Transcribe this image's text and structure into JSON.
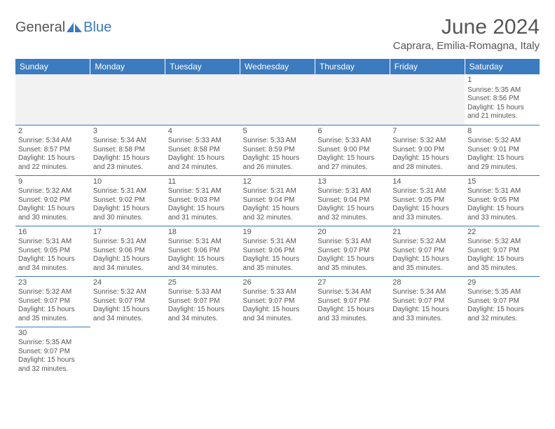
{
  "logo": {
    "part1": "General",
    "part2": "Blue"
  },
  "title": "June 2024",
  "location": "Caprara, Emilia-Romagna, Italy",
  "colors": {
    "brand": "#3b7bbf",
    "text": "#555555",
    "altRow": "#f2f2f2",
    "bg": "#ffffff"
  },
  "weekdays": [
    "Sunday",
    "Monday",
    "Tuesday",
    "Wednesday",
    "Thursday",
    "Friday",
    "Saturday"
  ],
  "weeks": [
    [
      null,
      null,
      null,
      null,
      null,
      null,
      {
        "n": "1",
        "sr": "5:35 AM",
        "ss": "8:56 PM",
        "dl": "15 hours and 21 minutes."
      }
    ],
    [
      {
        "n": "2",
        "sr": "5:34 AM",
        "ss": "8:57 PM",
        "dl": "15 hours and 22 minutes."
      },
      {
        "n": "3",
        "sr": "5:34 AM",
        "ss": "8:58 PM",
        "dl": "15 hours and 23 minutes."
      },
      {
        "n": "4",
        "sr": "5:33 AM",
        "ss": "8:58 PM",
        "dl": "15 hours and 24 minutes."
      },
      {
        "n": "5",
        "sr": "5:33 AM",
        "ss": "8:59 PM",
        "dl": "15 hours and 26 minutes."
      },
      {
        "n": "6",
        "sr": "5:33 AM",
        "ss": "9:00 PM",
        "dl": "15 hours and 27 minutes."
      },
      {
        "n": "7",
        "sr": "5:32 AM",
        "ss": "9:00 PM",
        "dl": "15 hours and 28 minutes."
      },
      {
        "n": "8",
        "sr": "5:32 AM",
        "ss": "9:01 PM",
        "dl": "15 hours and 29 minutes."
      }
    ],
    [
      {
        "n": "9",
        "sr": "5:32 AM",
        "ss": "9:02 PM",
        "dl": "15 hours and 30 minutes."
      },
      {
        "n": "10",
        "sr": "5:31 AM",
        "ss": "9:02 PM",
        "dl": "15 hours and 30 minutes."
      },
      {
        "n": "11",
        "sr": "5:31 AM",
        "ss": "9:03 PM",
        "dl": "15 hours and 31 minutes."
      },
      {
        "n": "12",
        "sr": "5:31 AM",
        "ss": "9:04 PM",
        "dl": "15 hours and 32 minutes."
      },
      {
        "n": "13",
        "sr": "5:31 AM",
        "ss": "9:04 PM",
        "dl": "15 hours and 32 minutes."
      },
      {
        "n": "14",
        "sr": "5:31 AM",
        "ss": "9:05 PM",
        "dl": "15 hours and 33 minutes."
      },
      {
        "n": "15",
        "sr": "5:31 AM",
        "ss": "9:05 PM",
        "dl": "15 hours and 33 minutes."
      }
    ],
    [
      {
        "n": "16",
        "sr": "5:31 AM",
        "ss": "9:05 PM",
        "dl": "15 hours and 34 minutes."
      },
      {
        "n": "17",
        "sr": "5:31 AM",
        "ss": "9:06 PM",
        "dl": "15 hours and 34 minutes."
      },
      {
        "n": "18",
        "sr": "5:31 AM",
        "ss": "9:06 PM",
        "dl": "15 hours and 34 minutes."
      },
      {
        "n": "19",
        "sr": "5:31 AM",
        "ss": "9:06 PM",
        "dl": "15 hours and 35 minutes."
      },
      {
        "n": "20",
        "sr": "5:31 AM",
        "ss": "9:07 PM",
        "dl": "15 hours and 35 minutes."
      },
      {
        "n": "21",
        "sr": "5:32 AM",
        "ss": "9:07 PM",
        "dl": "15 hours and 35 minutes."
      },
      {
        "n": "22",
        "sr": "5:32 AM",
        "ss": "9:07 PM",
        "dl": "15 hours and 35 minutes."
      }
    ],
    [
      {
        "n": "23",
        "sr": "5:32 AM",
        "ss": "9:07 PM",
        "dl": "15 hours and 35 minutes."
      },
      {
        "n": "24",
        "sr": "5:32 AM",
        "ss": "9:07 PM",
        "dl": "15 hours and 34 minutes."
      },
      {
        "n": "25",
        "sr": "5:33 AM",
        "ss": "9:07 PM",
        "dl": "15 hours and 34 minutes."
      },
      {
        "n": "26",
        "sr": "5:33 AM",
        "ss": "9:07 PM",
        "dl": "15 hours and 34 minutes."
      },
      {
        "n": "27",
        "sr": "5:34 AM",
        "ss": "9:07 PM",
        "dl": "15 hours and 33 minutes."
      },
      {
        "n": "28",
        "sr": "5:34 AM",
        "ss": "9:07 PM",
        "dl": "15 hours and 33 minutes."
      },
      {
        "n": "29",
        "sr": "5:35 AM",
        "ss": "9:07 PM",
        "dl": "15 hours and 32 minutes."
      }
    ],
    [
      {
        "n": "30",
        "sr": "5:35 AM",
        "ss": "9:07 PM",
        "dl": "15 hours and 32 minutes."
      },
      null,
      null,
      null,
      null,
      null,
      null
    ]
  ],
  "labels": {
    "sunrise": "Sunrise: ",
    "sunset": "Sunset: ",
    "daylight": "Daylight: "
  }
}
